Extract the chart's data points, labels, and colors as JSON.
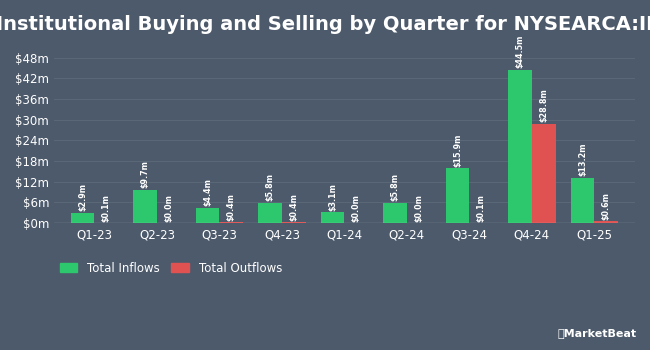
{
  "title": "Institutional Buying and Selling by Quarter for NYSEARCA:IBDU",
  "quarters": [
    "Q1-23",
    "Q2-23",
    "Q3-23",
    "Q4-23",
    "Q1-24",
    "Q2-24",
    "Q3-24",
    "Q4-24",
    "Q1-25"
  ],
  "inflows": [
    2.9,
    9.7,
    4.4,
    5.8,
    3.1,
    5.8,
    15.9,
    44.5,
    13.2
  ],
  "outflows": [
    0.1,
    0.0,
    0.4,
    0.4,
    0.0,
    0.0,
    0.1,
    28.8,
    0.6
  ],
  "inflow_labels": [
    "$2.9m",
    "$9.7m",
    "$4.4m",
    "$5.8m",
    "$3.1m",
    "$5.8m",
    "$15.9m",
    "$44.5m",
    "$13.2m"
  ],
  "outflow_labels": [
    "$0.1m",
    "$0.0m",
    "$0.4m",
    "$0.4m",
    "$0.0m",
    "$0.0m",
    "$0.1m",
    "$28.8m",
    "$0.6m"
  ],
  "inflow_color": "#2dc76d",
  "outflow_color": "#e05252",
  "bg_color": "#4d5a6b",
  "text_color": "#ffffff",
  "grid_color": "#5d6a7a",
  "ytick_labels": [
    "$0m",
    "$6m",
    "$12m",
    "$18m",
    "$24m",
    "$30m",
    "$36m",
    "$42m",
    "$48m"
  ],
  "ytick_values": [
    0,
    6,
    12,
    18,
    24,
    30,
    36,
    42,
    48
  ],
  "ylim": [
    0,
    52
  ],
  "bar_width": 0.38,
  "legend_inflow": "Total Inflows",
  "legend_outflow": "Total Outflows",
  "title_fontsize": 14,
  "label_fontsize": 5.8,
  "axis_fontsize": 8.5,
  "legend_fontsize": 8.5
}
